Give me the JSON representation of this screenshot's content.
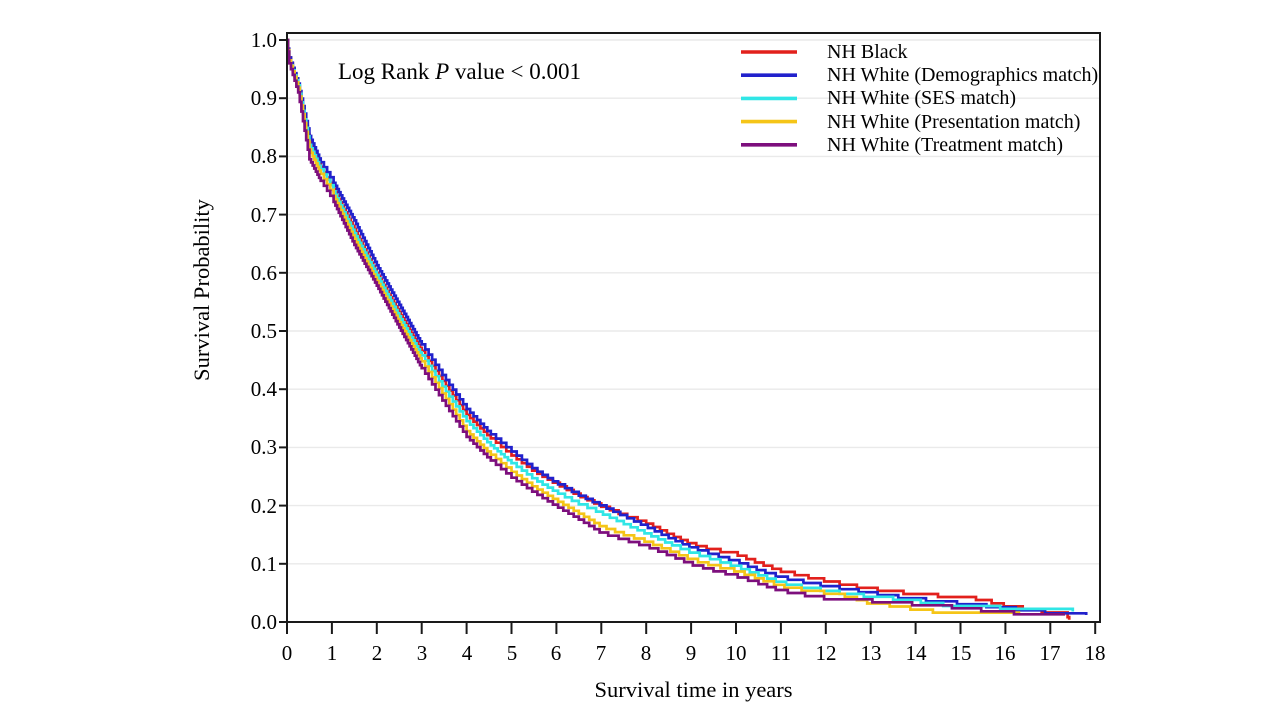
{
  "page": {
    "background": "#ffffff",
    "text_color": "#000000"
  },
  "annotation": {
    "prefix": "Log Rank ",
    "italic": "P",
    "suffix": " value < 0.001"
  },
  "chart_data": {
    "type": "line",
    "subtype": "kaplan-meier-step",
    "title": "",
    "xlabel": "Survival time in years",
    "ylabel": "Survival Probability",
    "xlim": [
      0,
      18
    ],
    "ylim": [
      0.0,
      1.0
    ],
    "grid": true,
    "grid_color": "#eaeaea",
    "axis_color": "#1a1a1a",
    "legend_position": "top-right-inside",
    "annotation_text": "Log Rank P value < 0.001",
    "xtick_values": [
      0,
      1,
      2,
      3,
      4,
      5,
      6,
      7,
      8,
      9,
      10,
      11,
      12,
      13,
      14,
      15,
      16,
      17,
      18
    ],
    "xtick_labels": [
      "0",
      "1",
      "2",
      "3",
      "4",
      "5",
      "6",
      "7",
      "8",
      "9",
      "10",
      "11",
      "12",
      "13",
      "14",
      "15",
      "16",
      "17",
      "18"
    ],
    "ytick_values": [
      0.0,
      0.1,
      0.2,
      0.3,
      0.4,
      0.5,
      0.6,
      0.7,
      0.8,
      0.9,
      1.0
    ],
    "ytick_labels": [
      "0.0",
      "0.1",
      "0.2",
      "0.3",
      "0.4",
      "0.5",
      "0.6",
      "0.7",
      "0.8",
      "0.9",
      "1.0"
    ],
    "series": [
      {
        "name": "NH Black",
        "color": "#e2201c",
        "points": [
          [
            0,
            1.0
          ],
          [
            0.05,
            0.97
          ],
          [
            0.25,
            0.92
          ],
          [
            0.5,
            0.825
          ],
          [
            0.75,
            0.782
          ],
          [
            1,
            0.75
          ],
          [
            1.5,
            0.675
          ],
          [
            2,
            0.6
          ],
          [
            2.5,
            0.532
          ],
          [
            3,
            0.466
          ],
          [
            3.5,
            0.41
          ],
          [
            4,
            0.356
          ],
          [
            4.5,
            0.318
          ],
          [
            5,
            0.286
          ],
          [
            5.5,
            0.258
          ],
          [
            6,
            0.236
          ],
          [
            6.5,
            0.216
          ],
          [
            7,
            0.198
          ],
          [
            7.5,
            0.182
          ],
          [
            8,
            0.169
          ],
          [
            8.5,
            0.15
          ],
          [
            9,
            0.133
          ],
          [
            9.5,
            0.122
          ],
          [
            10,
            0.115
          ],
          [
            10.5,
            0.1
          ],
          [
            11,
            0.086
          ],
          [
            11.5,
            0.077
          ],
          [
            12,
            0.069
          ],
          [
            12.5,
            0.061
          ],
          [
            13,
            0.055
          ],
          [
            13.5,
            0.05
          ],
          [
            14,
            0.046
          ],
          [
            14.5,
            0.043
          ],
          [
            15,
            0.042
          ],
          [
            15.5,
            0.036
          ],
          [
            16,
            0.026
          ],
          [
            16.5,
            0.02
          ],
          [
            17,
            0.014
          ],
          [
            17.35,
            0.013
          ],
          [
            17.42,
            0.004
          ]
        ]
      },
      {
        "name": "NH White (Demographics match)",
        "color": "#2121cc",
        "points": [
          [
            0,
            1.0
          ],
          [
            0.05,
            0.97
          ],
          [
            0.25,
            0.925
          ],
          [
            0.5,
            0.835
          ],
          [
            0.75,
            0.79
          ],
          [
            1,
            0.76
          ],
          [
            1.5,
            0.69
          ],
          [
            2,
            0.613
          ],
          [
            2.5,
            0.545
          ],
          [
            3,
            0.477
          ],
          [
            3.5,
            0.42
          ],
          [
            4,
            0.366
          ],
          [
            4.5,
            0.325
          ],
          [
            5,
            0.293
          ],
          [
            5.5,
            0.262
          ],
          [
            6,
            0.238
          ],
          [
            6.5,
            0.217
          ],
          [
            7,
            0.199
          ],
          [
            7.5,
            0.181
          ],
          [
            8,
            0.163
          ],
          [
            8.5,
            0.144
          ],
          [
            9,
            0.127
          ],
          [
            9.5,
            0.114
          ],
          [
            10,
            0.103
          ],
          [
            10.5,
            0.088
          ],
          [
            11,
            0.075
          ],
          [
            11.5,
            0.067
          ],
          [
            12,
            0.06
          ],
          [
            12.5,
            0.054
          ],
          [
            13,
            0.048
          ],
          [
            13.5,
            0.042
          ],
          [
            14,
            0.037
          ],
          [
            14.5,
            0.034
          ],
          [
            15,
            0.03
          ],
          [
            15.5,
            0.026
          ],
          [
            16,
            0.022
          ],
          [
            16.5,
            0.018
          ],
          [
            17,
            0.014
          ],
          [
            17.8,
            0.012
          ]
        ]
      },
      {
        "name": "NH White (SES match)",
        "color": "#30e6e6",
        "points": [
          [
            0,
            1.0
          ],
          [
            0.05,
            0.965
          ],
          [
            0.25,
            0.922
          ],
          [
            0.5,
            0.82
          ],
          [
            0.75,
            0.778
          ],
          [
            1,
            0.746
          ],
          [
            1.5,
            0.668
          ],
          [
            2,
            0.596
          ],
          [
            2.5,
            0.525
          ],
          [
            3,
            0.458
          ],
          [
            3.5,
            0.4
          ],
          [
            4,
            0.345
          ],
          [
            4.5,
            0.306
          ],
          [
            5,
            0.273
          ],
          [
            5.5,
            0.245
          ],
          [
            6,
            0.222
          ],
          [
            6.5,
            0.202
          ],
          [
            7,
            0.186
          ],
          [
            7.5,
            0.168
          ],
          [
            8,
            0.151
          ],
          [
            8.5,
            0.134
          ],
          [
            9,
            0.118
          ],
          [
            9.5,
            0.106
          ],
          [
            10,
            0.094
          ],
          [
            10.5,
            0.08
          ],
          [
            11,
            0.066
          ],
          [
            11.5,
            0.058
          ],
          [
            12,
            0.052
          ],
          [
            12.5,
            0.046
          ],
          [
            13,
            0.042
          ],
          [
            13.5,
            0.038
          ],
          [
            14,
            0.034
          ],
          [
            14.5,
            0.028
          ],
          [
            15,
            0.026
          ],
          [
            15.5,
            0.024
          ],
          [
            16,
            0.022
          ],
          [
            16.5,
            0.021
          ],
          [
            17,
            0.019
          ],
          [
            17.5,
            0.018
          ]
        ]
      },
      {
        "name": "NH White (Presentation match)",
        "color": "#f5c518",
        "points": [
          [
            0,
            1.0
          ],
          [
            0.05,
            0.965
          ],
          [
            0.25,
            0.918
          ],
          [
            0.5,
            0.812
          ],
          [
            0.75,
            0.77
          ],
          [
            1,
            0.738
          ],
          [
            1.5,
            0.658
          ],
          [
            2,
            0.586
          ],
          [
            2.5,
            0.515
          ],
          [
            3,
            0.448
          ],
          [
            3.5,
            0.388
          ],
          [
            4,
            0.328
          ],
          [
            4.5,
            0.29
          ],
          [
            5,
            0.258
          ],
          [
            5.5,
            0.231
          ],
          [
            6,
            0.208
          ],
          [
            6.5,
            0.186
          ],
          [
            7,
            0.163
          ],
          [
            7.5,
            0.149
          ],
          [
            8,
            0.137
          ],
          [
            8.5,
            0.122
          ],
          [
            9,
            0.106
          ],
          [
            9.5,
            0.095
          ],
          [
            10,
            0.086
          ],
          [
            10.5,
            0.073
          ],
          [
            11,
            0.06
          ],
          [
            11.5,
            0.053
          ],
          [
            12,
            0.048
          ],
          [
            12.5,
            0.042
          ],
          [
            13,
            0.03
          ],
          [
            13.5,
            0.026
          ],
          [
            14,
            0.02
          ],
          [
            14.5,
            0.015
          ],
          [
            15,
            0.014
          ],
          [
            15.5,
            0.013
          ],
          [
            16,
            0.012
          ],
          [
            16.3,
            0.012
          ]
        ]
      },
      {
        "name": "NH White (Treatment match)",
        "color": "#7d0f7d",
        "points": [
          [
            0,
            1.0
          ],
          [
            0.05,
            0.96
          ],
          [
            0.25,
            0.91
          ],
          [
            0.5,
            0.795
          ],
          [
            0.75,
            0.758
          ],
          [
            1,
            0.728
          ],
          [
            1.5,
            0.648
          ],
          [
            2,
            0.578
          ],
          [
            2.5,
            0.506
          ],
          [
            3,
            0.436
          ],
          [
            3.5,
            0.376
          ],
          [
            4,
            0.318
          ],
          [
            4.5,
            0.28
          ],
          [
            5,
            0.248
          ],
          [
            5.5,
            0.222
          ],
          [
            6,
            0.198
          ],
          [
            6.5,
            0.176
          ],
          [
            7,
            0.152
          ],
          [
            7.5,
            0.14
          ],
          [
            8,
            0.129
          ],
          [
            8.5,
            0.114
          ],
          [
            9,
            0.098
          ],
          [
            9.5,
            0.087
          ],
          [
            10,
            0.0775
          ],
          [
            10.5,
            0.065
          ],
          [
            11,
            0.052
          ],
          [
            11.5,
            0.045
          ],
          [
            12,
            0.0385
          ],
          [
            12.5,
            0.035
          ],
          [
            13,
            0.034
          ],
          [
            13.5,
            0.032
          ],
          [
            14,
            0.028
          ],
          [
            14.5,
            0.026
          ],
          [
            15,
            0.022
          ],
          [
            15.5,
            0.018
          ],
          [
            16,
            0.014
          ],
          [
            16.5,
            0.012
          ],
          [
            17,
            0.011
          ],
          [
            17.3,
            0.011
          ]
        ]
      }
    ]
  }
}
